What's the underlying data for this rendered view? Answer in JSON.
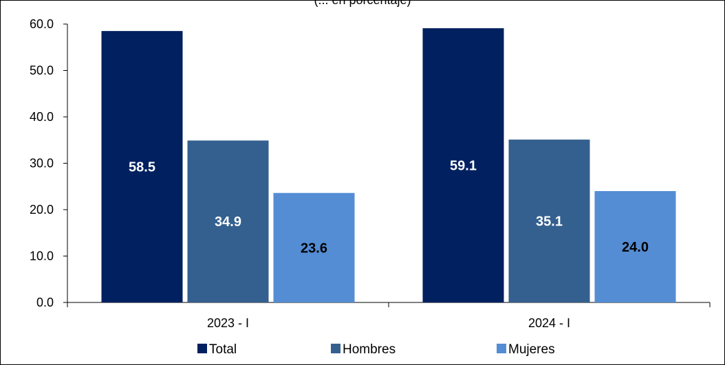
{
  "chart_data": {
    "type": "bar",
    "title": "(... en porcentaje)",
    "categories": [
      "2023 - I",
      "2024 - I"
    ],
    "series": [
      {
        "name": "Total",
        "values": [
          58.5,
          59.1
        ],
        "color": "#002060",
        "label_color": "#ffffff"
      },
      {
        "name": "Hombres",
        "values": [
          34.9,
          35.1
        ],
        "color": "#34608F",
        "label_color": "#ffffff"
      },
      {
        "name": "Mujeres",
        "values": [
          23.6,
          24.0
        ],
        "color": "#548DD4",
        "label_color": "#000000"
      }
    ],
    "ylim": [
      0,
      60
    ],
    "yticks": [
      "0.0",
      "10.0",
      "20.0",
      "30.0",
      "40.0",
      "50.0",
      "60.0"
    ],
    "xlabel": "",
    "ylabel": "",
    "grid": false,
    "legend_position": "bottom"
  }
}
